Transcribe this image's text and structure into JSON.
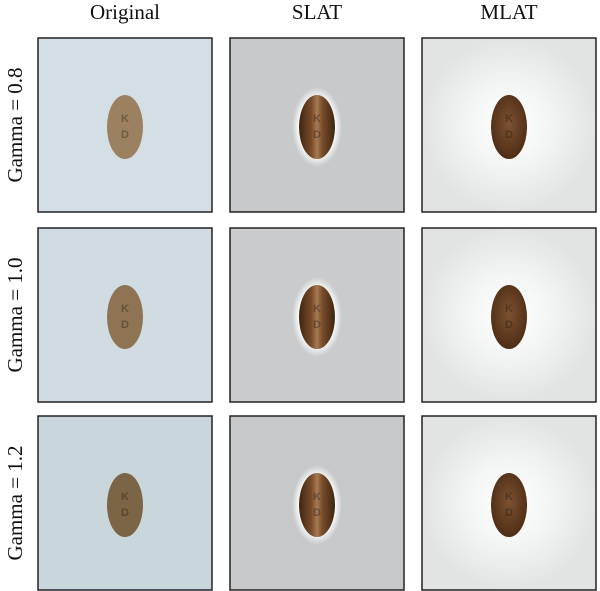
{
  "columns": [
    "Original",
    "SLAT",
    "MLAT"
  ],
  "rows": [
    "Gamma = 0.8",
    "Gamma = 1.0",
    "Gamma = 1.2"
  ],
  "imprint": [
    "K",
    "D"
  ]
}
